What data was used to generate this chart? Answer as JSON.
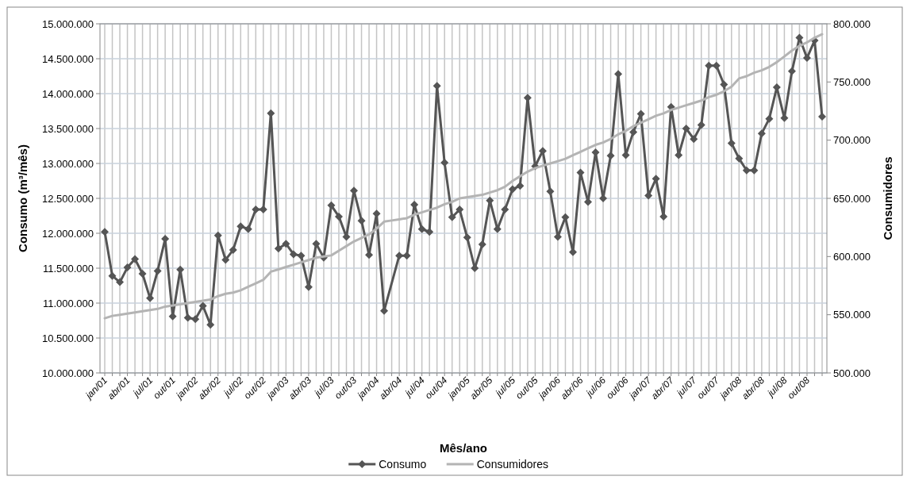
{
  "chart_data": {
    "type": "line",
    "xlabel": "Mês/ano",
    "ylabel": "Consumo (m³/mês)",
    "y2label": "Consumidores",
    "categories": [
      "jan/01",
      null,
      null,
      "abr/01",
      null,
      null,
      "jul/01",
      null,
      null,
      "out/01",
      null,
      null,
      "jan/02",
      null,
      null,
      "abr/02",
      null,
      null,
      "jul/02",
      null,
      null,
      "out/02",
      null,
      null,
      "jan/03",
      null,
      null,
      "abr/03",
      null,
      null,
      "jul/03",
      null,
      null,
      "out/03",
      null,
      null,
      "jan/04",
      null,
      null,
      "abr/04",
      null,
      null,
      "jul/04",
      null,
      null,
      "out/04",
      null,
      null,
      "jan/05",
      null,
      null,
      "abr/05",
      null,
      null,
      "jul/05",
      null,
      null,
      "out/05",
      null,
      null,
      "jan/06",
      null,
      null,
      "abr/06",
      null,
      null,
      "jul/06",
      null,
      null,
      "out/06",
      null,
      null,
      "jan/07",
      null,
      null,
      "abr/07",
      null,
      null,
      "jul/07",
      null,
      null,
      "out/07",
      null,
      null,
      "jan/08",
      null,
      null,
      "abr/08",
      null,
      null,
      "jul/08",
      null,
      null,
      "out/08",
      null,
      null
    ],
    "series": [
      {
        "name": "Consumo",
        "color": "#555555",
        "marker": "diamond",
        "values": [
          12020000,
          11390000,
          11300000,
          11510000,
          11630000,
          11420000,
          11070000,
          11460000,
          11920000,
          10810000,
          11480000,
          10790000,
          10770000,
          10960000,
          10690000,
          11970000,
          11620000,
          11760000,
          12100000,
          12060000,
          12340000,
          12340000,
          13720000,
          11780000,
          11850000,
          11700000,
          11680000,
          11230000,
          11850000,
          11650000,
          12400000,
          12240000,
          11950000,
          12610000,
          12180000,
          11690000,
          12280000,
          10890000,
          null,
          11680000,
          11680000,
          12410000,
          12060000,
          12020000,
          14110000,
          13010000,
          12230000,
          12340000,
          11940000,
          11500000,
          11840000,
          12470000,
          12060000,
          12340000,
          12630000,
          12680000,
          13940000,
          12960000,
          13180000,
          12600000,
          11950000,
          12230000,
          11730000,
          12870000,
          12450000,
          13160000,
          12500000,
          13110000,
          14280000,
          13120000,
          13450000,
          13710000,
          12540000,
          12780000,
          12240000,
          13810000,
          13120000,
          13500000,
          13350000,
          13550000,
          14400000,
          14400000,
          14130000,
          13290000,
          13070000,
          12900000,
          12900000,
          13430000,
          13640000,
          14090000,
          13650000,
          14320000,
          14800000,
          14510000,
          14760000,
          13670000
        ]
      },
      {
        "name": "Consumidores",
        "color": "#b4b4b4",
        "marker": "none",
        "axis": "y2",
        "values": [
          547000,
          549000,
          550000,
          551000,
          552000,
          553000,
          554000,
          555000,
          557000,
          558000,
          559000,
          560000,
          561000,
          562000,
          563000,
          566000,
          568000,
          569000,
          571000,
          574000,
          577000,
          580000,
          587000,
          589000,
          591000,
          593000,
          595000,
          597000,
          599000,
          600000,
          601000,
          605000,
          609000,
          613000,
          616000,
          619000,
          624000,
          630000,
          631000,
          632000,
          633000,
          636000,
          638000,
          640000,
          642000,
          645000,
          647000,
          650000,
          651000,
          652000,
          653000,
          655000,
          657000,
          660000,
          665000,
          669000,
          673000,
          676000,
          678000,
          680000,
          682000,
          684000,
          687000,
          690000,
          693000,
          696000,
          698000,
          701000,
          705000,
          708000,
          712000,
          715000,
          718000,
          721000,
          723000,
          726000,
          728000,
          730000,
          732000,
          734000,
          737000,
          739000,
          742000,
          746000,
          753000,
          755000,
          758000,
          760000,
          763000,
          767000,
          772000,
          777000,
          781000,
          784000,
          788000,
          791000
        ]
      }
    ],
    "ylim": [
      10000000,
      15000000
    ],
    "yticks": [
      {
        "value": 10000000,
        "label": "10.000.000"
      },
      {
        "value": 10500000,
        "label": "10.500.000"
      },
      {
        "value": 11000000,
        "label": "11.000.000"
      },
      {
        "value": 11500000,
        "label": "11.500.000"
      },
      {
        "value": 12000000,
        "label": "12.000.000"
      },
      {
        "value": 12500000,
        "label": "12.500.000"
      },
      {
        "value": 13000000,
        "label": "13.000.000"
      },
      {
        "value": 13500000,
        "label": "13.500.000"
      },
      {
        "value": 14000000,
        "label": "14.000.000"
      },
      {
        "value": 14500000,
        "label": "14.500.000"
      },
      {
        "value": 15000000,
        "label": "15.000.000"
      }
    ],
    "y2lim": [
      500000,
      800000
    ],
    "y2ticks": [
      {
        "value": 500000,
        "label": "500.000"
      },
      {
        "value": 550000,
        "label": "550.000"
      },
      {
        "value": 600000,
        "label": "600.000"
      },
      {
        "value": 650000,
        "label": "650.000"
      },
      {
        "value": 700000,
        "label": "700.000"
      },
      {
        "value": 750000,
        "label": "750.000"
      },
      {
        "value": 800000,
        "label": "800.000"
      }
    ],
    "grid": true,
    "legend": "bottom"
  }
}
